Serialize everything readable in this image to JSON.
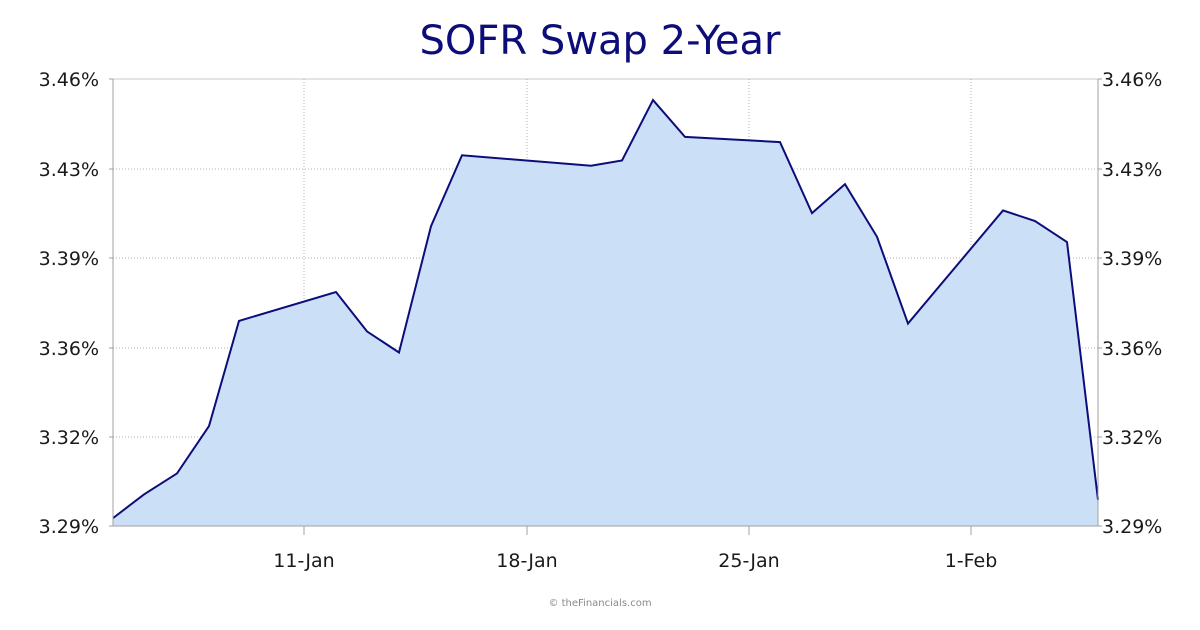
{
  "title": "SOFR Swap 2-Year",
  "footer": "© theFinancials.com",
  "colors": {
    "line": "#0d0d7a",
    "fill": "#cbe0f7",
    "grid": "#b0b0b0",
    "axis": "#a0a0a0"
  },
  "y_ticks": [
    "3.46%",
    "3.43%",
    "3.39%",
    "3.36%",
    "3.32%",
    "3.29%"
  ],
  "x_ticks": [
    "11-Jan",
    "18-Jan",
    "25-Jan",
    "1-Feb"
  ],
  "chart_data": {
    "type": "area",
    "title": "SOFR Swap 2-Year",
    "xlabel": "",
    "ylabel": "",
    "ylim": [
      3.29,
      3.46
    ],
    "y_ticks": [
      3.46,
      3.43,
      3.39,
      3.36,
      3.32,
      3.29
    ],
    "x_tick_labels": [
      "11-Jan",
      "18-Jan",
      "25-Jan",
      "1-Feb"
    ],
    "grid": true,
    "legend": "none",
    "series": [
      {
        "name": "SOFR Swap 2-Year",
        "x": [
          "5-Jan",
          "6-Jan",
          "7-Jan",
          "8-Jan",
          "9-Jan",
          "12-Jan",
          "13-Jan",
          "14-Jan",
          "15-Jan",
          "16-Jan",
          "20-Jan",
          "21-Jan",
          "22-Jan",
          "23-Jan",
          "26-Jan",
          "27-Jan",
          "28-Jan",
          "29-Jan",
          "30-Jan",
          "2-Feb",
          "3-Feb",
          "4-Feb",
          "5-Feb"
        ],
        "values": [
          3.293,
          3.302,
          3.31,
          3.328,
          3.368,
          3.379,
          3.364,
          3.356,
          3.404,
          3.431,
          3.427,
          3.429,
          3.452,
          3.438,
          3.436,
          3.409,
          3.42,
          3.4,
          3.367,
          3.41,
          3.406,
          3.398,
          3.3
        ]
      }
    ]
  }
}
